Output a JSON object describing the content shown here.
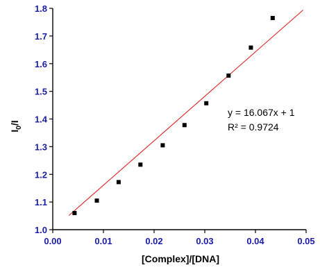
{
  "chart_data": {
    "type": "scatter",
    "xlabel": "[Complex]/[DNA]",
    "ylabel_main": "I",
    "ylabel_sub": "0",
    "ylabel_tail": "/I",
    "xlim": [
      0.0,
      0.05
    ],
    "ylim": [
      1.0,
      1.8
    ],
    "x_ticks": [
      "0.00",
      "0.01",
      "0.02",
      "0.03",
      "0.04",
      "0.05"
    ],
    "y_ticks": [
      "1.0",
      "1.1",
      "1.2",
      "1.3",
      "1.4",
      "1.5",
      "1.6",
      "1.7",
      "1.8"
    ],
    "x_tick_values": [
      0.0,
      0.01,
      0.02,
      0.03,
      0.04,
      0.05
    ],
    "y_tick_values": [
      1.0,
      1.1,
      1.2,
      1.3,
      1.4,
      1.5,
      1.6,
      1.7,
      1.8
    ],
    "points": [
      {
        "x": 0.0043,
        "y": 1.06
      },
      {
        "x": 0.0087,
        "y": 1.105
      },
      {
        "x": 0.013,
        "y": 1.172
      },
      {
        "x": 0.0173,
        "y": 1.235
      },
      {
        "x": 0.0217,
        "y": 1.305
      },
      {
        "x": 0.026,
        "y": 1.378
      },
      {
        "x": 0.0303,
        "y": 1.457
      },
      {
        "x": 0.0347,
        "y": 1.557
      },
      {
        "x": 0.0391,
        "y": 1.658
      },
      {
        "x": 0.0434,
        "y": 1.765
      }
    ],
    "fit": {
      "slope": 16.067,
      "intercept": 1.0,
      "x_start": 0.0032,
      "x_end": 0.0494
    },
    "annotation": {
      "equation": "y = 16.067x + 1",
      "r2": "R² = 0.9724"
    },
    "colors": {
      "points": "#000000",
      "fit_line": "#e02020",
      "tick_labels": "#1a1aa8",
      "axes": "#000000"
    }
  }
}
